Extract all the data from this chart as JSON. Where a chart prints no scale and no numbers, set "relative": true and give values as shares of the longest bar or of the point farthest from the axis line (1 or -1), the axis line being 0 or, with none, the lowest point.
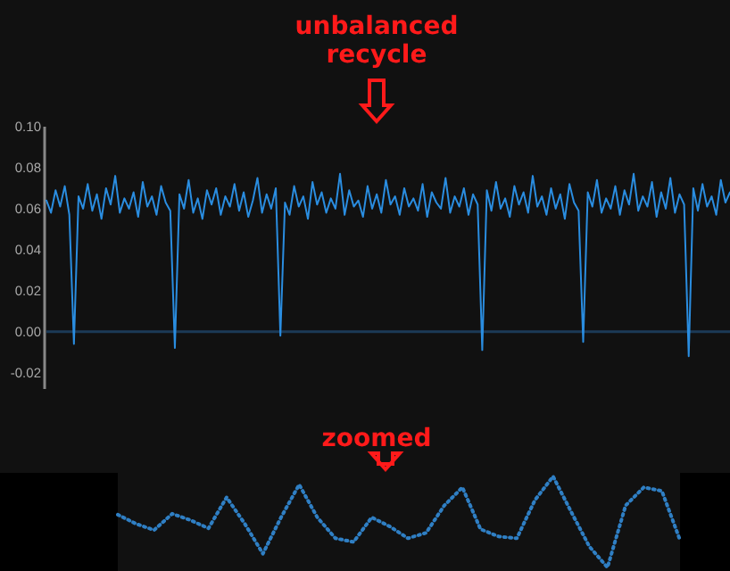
{
  "chart_data": [
    {
      "type": "line",
      "categories": [
        null,
        null,
        null,
        null,
        null,
        null,
        null,
        null,
        null,
        null,
        null,
        null,
        null,
        null,
        null,
        null,
        null,
        null,
        null,
        null,
        null,
        null,
        null,
        null,
        null,
        null,
        null,
        null,
        null,
        null,
        null,
        null,
        null,
        null,
        null,
        null,
        null,
        null,
        null,
        null,
        null,
        null,
        null,
        null,
        null,
        null,
        null,
        null,
        null,
        null,
        null,
        null,
        null,
        null,
        null,
        null,
        null,
        null,
        null,
        null,
        null,
        null,
        null,
        null,
        null,
        null,
        null,
        null,
        null,
        null,
        null,
        null,
        null,
        null,
        null,
        null,
        null,
        null,
        null,
        null,
        null,
        null,
        null,
        null,
        null,
        null,
        null,
        null,
        null,
        null,
        null,
        null,
        null,
        null,
        null,
        null,
        null,
        null,
        null,
        null,
        null,
        null,
        null,
        null,
        null,
        null,
        null,
        null,
        null,
        null,
        null,
        null,
        null,
        null,
        null,
        null,
        null,
        null,
        null,
        null,
        null,
        null,
        null,
        null,
        null,
        null,
        null,
        null,
        null,
        null,
        null,
        null,
        null,
        null,
        null,
        null,
        null,
        null,
        null,
        null,
        null,
        null,
        null,
        null,
        null,
        null,
        null,
        null,
        null,
        null
      ],
      "series": [
        {
          "color": "#2a8de0",
          "values": [
            0.064,
            0.058,
            0.069,
            0.061,
            0.071,
            0.057,
            -0.006,
            0.066,
            0.06,
            0.072,
            0.059,
            0.067,
            0.055,
            0.07,
            0.062,
            0.076,
            0.058,
            0.065,
            0.06,
            0.068,
            0.056,
            0.073,
            0.061,
            0.066,
            0.057,
            0.071,
            0.063,
            0.059,
            -0.008,
            0.067,
            0.06,
            0.074,
            0.058,
            0.065,
            0.055,
            0.069,
            0.062,
            0.07,
            0.057,
            0.066,
            0.061,
            0.072,
            0.059,
            0.068,
            0.056,
            0.064,
            0.075,
            0.058,
            0.067,
            0.06,
            0.07,
            -0.002,
            0.063,
            0.057,
            0.071,
            0.061,
            0.066,
            0.055,
            0.073,
            0.062,
            0.068,
            0.058,
            0.065,
            0.06,
            0.077,
            0.057,
            0.069,
            0.061,
            0.064,
            0.056,
            0.071,
            0.06,
            0.067,
            0.058,
            0.074,
            0.062,
            0.066,
            0.057,
            0.07,
            0.061,
            0.065,
            0.059,
            0.072,
            0.056,
            0.068,
            0.063,
            0.06,
            0.075,
            0.058,
            0.066,
            0.061,
            0.07,
            0.057,
            0.067,
            0.062,
            -0.009,
            0.069,
            0.059,
            0.073,
            0.06,
            0.065,
            0.056,
            0.071,
            0.062,
            0.068,
            0.058,
            0.076,
            0.061,
            0.066,
            0.057,
            0.07,
            0.06,
            0.067,
            0.055,
            0.072,
            0.063,
            0.059,
            -0.005,
            0.068,
            0.061,
            0.074,
            0.058,
            0.065,
            0.06,
            0.071,
            0.057,
            0.069,
            0.062,
            0.077,
            0.059,
            0.066,
            0.061,
            0.073,
            0.056,
            0.068,
            0.06,
            0.075,
            0.058,
            0.067,
            0.062,
            -0.012,
            0.07,
            0.059,
            0.072,
            0.061,
            0.066,
            0.057,
            0.074,
            0.063,
            0.068
          ]
        }
      ],
      "ylim": [
        -0.028,
        0.1
      ],
      "yticks": [
        {
          "value": 0.1,
          "label": "0.10"
        },
        {
          "value": 0.08,
          "label": "0.08"
        },
        {
          "value": 0.06,
          "label": "0.06"
        },
        {
          "value": 0.04,
          "label": "0.04"
        },
        {
          "value": 0.02,
          "label": "0.02"
        },
        {
          "value": 0,
          "label": "0.00"
        },
        {
          "value": -0.02,
          "label": "-0.02"
        }
      ],
      "tick_labels": "y",
      "grid": false,
      "line_style": "solid",
      "ref_lines": [
        {
          "axis": "y",
          "value": 0,
          "color": "#1c3a57"
        }
      ],
      "annotations": [
        "unbalanced recycle"
      ]
    },
    {
      "type": "line",
      "relative": true,
      "categories": [
        null,
        null,
        null,
        null,
        null,
        null,
        null,
        null,
        null,
        null,
        null,
        null,
        null,
        null,
        null,
        null,
        null,
        null,
        null,
        null,
        null,
        null,
        null,
        null,
        null,
        null,
        null,
        null,
        null,
        null,
        null,
        null
      ],
      "series": [
        {
          "color": "#2f7fc4",
          "values": [
            0.58,
            0.48,
            0.41,
            0.59,
            0.52,
            0.43,
            0.77,
            0.48,
            0.15,
            0.55,
            0.91,
            0.55,
            0.32,
            0.28,
            0.55,
            0.45,
            0.32,
            0.38,
            0.68,
            0.88,
            0.42,
            0.34,
            0.32,
            0.74,
            1,
            0.61,
            0.23,
            0,
            0.68,
            0.88,
            0.84,
            0.3
          ]
        }
      ],
      "line_style": "dotted",
      "annotations": [
        "zoomed"
      ]
    }
  ]
}
